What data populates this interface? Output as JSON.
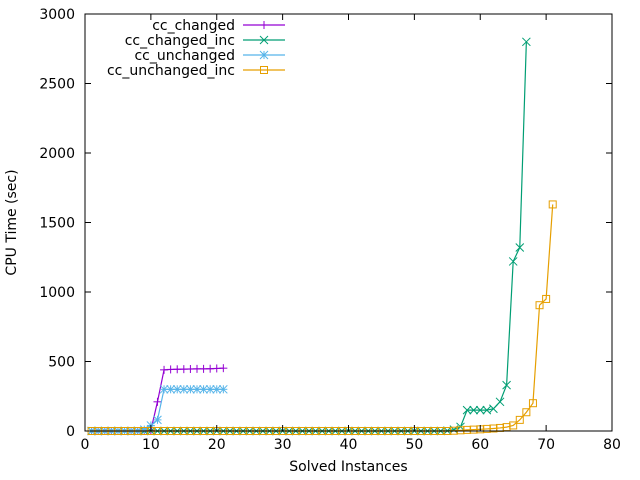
{
  "chart_data": {
    "type": "line",
    "title": "",
    "xlabel": "Solved Instances",
    "ylabel": "CPU Time (sec)",
    "xlim": [
      0,
      80
    ],
    "ylim": [
      0,
      3000
    ],
    "xticks": [
      0,
      10,
      20,
      30,
      40,
      50,
      60,
      70,
      80
    ],
    "yticks": [
      0,
      500,
      1000,
      1500,
      2000,
      2500,
      3000
    ],
    "grid": false,
    "legend_position": "top-left",
    "series": [
      {
        "name": "cc_changed",
        "color": "#9400d3",
        "marker": "plus",
        "points": [
          [
            1,
            0
          ],
          [
            2,
            0
          ],
          [
            3,
            0
          ],
          [
            4,
            0
          ],
          [
            5,
            0
          ],
          [
            6,
            0
          ],
          [
            7,
            0
          ],
          [
            8,
            0
          ],
          [
            9,
            0
          ],
          [
            10,
            5
          ],
          [
            11,
            210
          ],
          [
            12,
            440
          ],
          [
            13,
            443
          ],
          [
            14,
            444
          ],
          [
            15,
            445
          ],
          [
            16,
            446
          ],
          [
            17,
            447
          ],
          [
            18,
            447
          ],
          [
            19,
            448
          ],
          [
            20,
            450
          ],
          [
            21,
            452
          ]
        ]
      },
      {
        "name": "cc_changed_inc",
        "color": "#009e73",
        "marker": "x",
        "points": [
          [
            1,
            0
          ],
          [
            2,
            0
          ],
          [
            3,
            0
          ],
          [
            4,
            0
          ],
          [
            5,
            0
          ],
          [
            6,
            0
          ],
          [
            7,
            0
          ],
          [
            8,
            0
          ],
          [
            9,
            0
          ],
          [
            10,
            0
          ],
          [
            11,
            0
          ],
          [
            12,
            0
          ],
          [
            13,
            0
          ],
          [
            14,
            0
          ],
          [
            15,
            0
          ],
          [
            16,
            0
          ],
          [
            17,
            0
          ],
          [
            18,
            0
          ],
          [
            19,
            0
          ],
          [
            20,
            0
          ],
          [
            21,
            0
          ],
          [
            22,
            0
          ],
          [
            23,
            0
          ],
          [
            24,
            0
          ],
          [
            25,
            0
          ],
          [
            26,
            0
          ],
          [
            27,
            0
          ],
          [
            28,
            0
          ],
          [
            29,
            0
          ],
          [
            30,
            0
          ],
          [
            31,
            0
          ],
          [
            32,
            0
          ],
          [
            33,
            0
          ],
          [
            34,
            0
          ],
          [
            35,
            0
          ],
          [
            36,
            0
          ],
          [
            37,
            0
          ],
          [
            38,
            0
          ],
          [
            39,
            0
          ],
          [
            40,
            0
          ],
          [
            41,
            0
          ],
          [
            42,
            0
          ],
          [
            43,
            0
          ],
          [
            44,
            0
          ],
          [
            45,
            0
          ],
          [
            46,
            0
          ],
          [
            47,
            0
          ],
          [
            48,
            0
          ],
          [
            49,
            0
          ],
          [
            50,
            0
          ],
          [
            51,
            0
          ],
          [
            52,
            0
          ],
          [
            53,
            0
          ],
          [
            54,
            0
          ],
          [
            55,
            2
          ],
          [
            56,
            10
          ],
          [
            57,
            30
          ],
          [
            58,
            150
          ],
          [
            59,
            150
          ],
          [
            60,
            150
          ],
          [
            61,
            150
          ],
          [
            62,
            160
          ],
          [
            63,
            210
          ],
          [
            64,
            330
          ],
          [
            65,
            1220
          ],
          [
            66,
            1320
          ],
          [
            67,
            2800
          ]
        ]
      },
      {
        "name": "cc_unchanged",
        "color": "#56b4e9",
        "marker": "star",
        "points": [
          [
            1,
            0
          ],
          [
            2,
            0
          ],
          [
            3,
            0
          ],
          [
            4,
            0
          ],
          [
            5,
            0
          ],
          [
            6,
            0
          ],
          [
            7,
            0
          ],
          [
            8,
            0
          ],
          [
            9,
            10
          ],
          [
            10,
            40
          ],
          [
            11,
            80
          ],
          [
            12,
            300
          ],
          [
            13,
            300
          ],
          [
            14,
            300
          ],
          [
            15,
            300
          ],
          [
            16,
            300
          ],
          [
            17,
            300
          ],
          [
            18,
            300
          ],
          [
            19,
            300
          ],
          [
            20,
            300
          ],
          [
            21,
            300
          ]
        ]
      },
      {
        "name": "cc_unchanged_inc",
        "color": "#e69f00",
        "marker": "square",
        "points": [
          [
            1,
            0
          ],
          [
            2,
            0
          ],
          [
            3,
            0
          ],
          [
            4,
            0
          ],
          [
            5,
            0
          ],
          [
            6,
            0
          ],
          [
            7,
            0
          ],
          [
            8,
            0
          ],
          [
            9,
            0
          ],
          [
            10,
            0
          ],
          [
            11,
            0
          ],
          [
            12,
            0
          ],
          [
            13,
            0
          ],
          [
            14,
            0
          ],
          [
            15,
            0
          ],
          [
            16,
            0
          ],
          [
            17,
            0
          ],
          [
            18,
            0
          ],
          [
            19,
            0
          ],
          [
            20,
            0
          ],
          [
            21,
            0
          ],
          [
            22,
            0
          ],
          [
            23,
            0
          ],
          [
            24,
            0
          ],
          [
            25,
            0
          ],
          [
            26,
            0
          ],
          [
            27,
            0
          ],
          [
            28,
            0
          ],
          [
            29,
            0
          ],
          [
            30,
            0
          ],
          [
            31,
            0
          ],
          [
            32,
            0
          ],
          [
            33,
            0
          ],
          [
            34,
            0
          ],
          [
            35,
            0
          ],
          [
            36,
            0
          ],
          [
            37,
            0
          ],
          [
            38,
            0
          ],
          [
            39,
            0
          ],
          [
            40,
            0
          ],
          [
            41,
            0
          ],
          [
            42,
            0
          ],
          [
            43,
            0
          ],
          [
            44,
            0
          ],
          [
            45,
            0
          ],
          [
            46,
            0
          ],
          [
            47,
            0
          ],
          [
            48,
            0
          ],
          [
            49,
            0
          ],
          [
            50,
            0
          ],
          [
            51,
            0
          ],
          [
            52,
            0
          ],
          [
            53,
            0
          ],
          [
            54,
            0
          ],
          [
            55,
            0
          ],
          [
            56,
            2
          ],
          [
            57,
            5
          ],
          [
            58,
            8
          ],
          [
            59,
            10
          ],
          [
            60,
            12
          ],
          [
            61,
            15
          ],
          [
            62,
            18
          ],
          [
            63,
            22
          ],
          [
            64,
            28
          ],
          [
            65,
            40
          ],
          [
            66,
            80
          ],
          [
            67,
            135
          ],
          [
            68,
            200
          ],
          [
            69,
            905
          ],
          [
            70,
            950
          ],
          [
            71,
            1630
          ]
        ]
      }
    ]
  }
}
